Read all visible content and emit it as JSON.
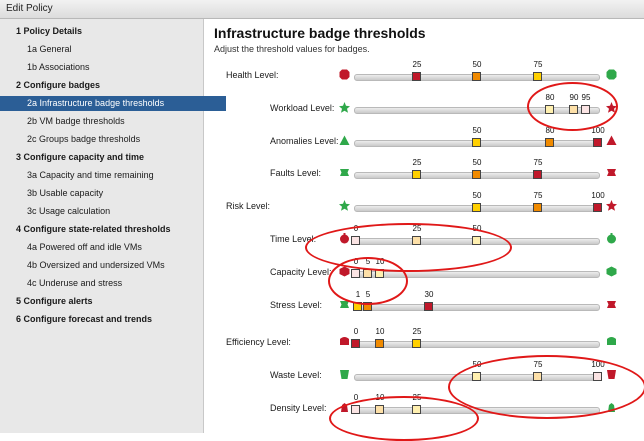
{
  "window": {
    "title": "Edit Policy"
  },
  "sidebar": {
    "items": [
      {
        "num": "1",
        "label": "Policy Details",
        "level": 1
      },
      {
        "num": "1a",
        "label": "General",
        "level": 2
      },
      {
        "num": "1b",
        "label": "Associations",
        "level": 2
      },
      {
        "num": "2",
        "label": "Configure badges",
        "level": 1
      },
      {
        "num": "2a",
        "label": "Infrastructure badge thresholds",
        "level": 2,
        "active": true
      },
      {
        "num": "2b",
        "label": "VM badge thresholds",
        "level": 2
      },
      {
        "num": "2c",
        "label": "Groups badge thresholds",
        "level": 2
      },
      {
        "num": "3",
        "label": "Configure capacity and time",
        "level": 1
      },
      {
        "num": "3a",
        "label": "Capacity and time remaining",
        "level": 2
      },
      {
        "num": "3b",
        "label": "Usable capacity",
        "level": 2
      },
      {
        "num": "3c",
        "label": "Usage calculation",
        "level": 2
      },
      {
        "num": "4",
        "label": "Configure state-related thresholds",
        "level": 1
      },
      {
        "num": "4a",
        "label": "Powered off and idle VMs",
        "level": 2
      },
      {
        "num": "4b",
        "label": "Oversized and undersized VMs",
        "level": 2
      },
      {
        "num": "4c",
        "label": "Underuse and stress",
        "level": 2
      },
      {
        "num": "5",
        "label": "Configure alerts",
        "level": 1
      },
      {
        "num": "6",
        "label": "Configure forecast and trends",
        "level": 1
      }
    ]
  },
  "main": {
    "title": "Infrastructure badge thresholds",
    "subtitle": "Adjust the threshold values for badges.",
    "rows": [
      {
        "label": "Health Level:",
        "type": "group",
        "left_icon": "health-badge-red",
        "right_icon": "health-badge-green",
        "handles": [
          {
            "value": "25",
            "pos": 25,
            "color": "#c0182a"
          },
          {
            "value": "50",
            "pos": 50,
            "color": "#f08a00"
          },
          {
            "value": "75",
            "pos": 75,
            "color": "#ffd000"
          }
        ]
      },
      {
        "label": "Workload Level:",
        "type": "sub",
        "left_icon": "workload-badge-green",
        "right_icon": "workload-badge-red",
        "handles": [
          {
            "value": "80",
            "pos": 80,
            "color": "#fff0b0"
          },
          {
            "value": "90",
            "pos": 90,
            "color": "#fde0a8"
          },
          {
            "value": "95",
            "pos": 95,
            "color": "#fbe4e4"
          }
        ]
      },
      {
        "label": "Anomalies Level:",
        "type": "sub",
        "left_icon": "anomalies-badge-green",
        "right_icon": "anomalies-badge-red",
        "handles": [
          {
            "value": "50",
            "pos": 50,
            "color": "#ffd000"
          },
          {
            "value": "80",
            "pos": 80,
            "color": "#f08a00"
          },
          {
            "value": "100",
            "pos": 100,
            "color": "#c0182a"
          }
        ]
      },
      {
        "label": "Faults Level:",
        "type": "sub",
        "left_icon": "faults-badge-green",
        "right_icon": "faults-badge-red",
        "handles": [
          {
            "value": "25",
            "pos": 25,
            "color": "#ffd000"
          },
          {
            "value": "50",
            "pos": 50,
            "color": "#f08a00"
          },
          {
            "value": "75",
            "pos": 75,
            "color": "#c0182a"
          }
        ]
      },
      {
        "label": "Risk Level:",
        "type": "group",
        "left_icon": "risk-badge-green",
        "right_icon": "risk-badge-red",
        "handles": [
          {
            "value": "50",
            "pos": 50,
            "color": "#ffd000"
          },
          {
            "value": "75",
            "pos": 75,
            "color": "#f08a00"
          },
          {
            "value": "100",
            "pos": 100,
            "color": "#c0182a"
          }
        ]
      },
      {
        "label": "Time Level:",
        "type": "sub",
        "left_icon": "time-badge-red",
        "right_icon": "time-badge-green",
        "handles": [
          {
            "value": "0",
            "pos": 0,
            "color": "#fbe4e4"
          },
          {
            "value": "25",
            "pos": 25,
            "color": "#fde0a8"
          },
          {
            "value": "50",
            "pos": 50,
            "color": "#fff0b0"
          }
        ]
      },
      {
        "label": "Capacity Level:",
        "type": "sub",
        "left_icon": "capacity-badge-red",
        "right_icon": "capacity-badge-green",
        "handles": [
          {
            "value": "0",
            "pos": 0,
            "color": "#fbe4e4"
          },
          {
            "value": "5",
            "pos": 5,
            "color": "#fde0a8"
          },
          {
            "value": "10",
            "pos": 10,
            "color": "#fff0b0"
          }
        ]
      },
      {
        "label": "Stress Level:",
        "type": "sub",
        "left_icon": "stress-badge-green",
        "right_icon": "stress-badge-red",
        "handles": [
          {
            "value": "1",
            "pos": 1,
            "color": "#ffd000"
          },
          {
            "value": "5",
            "pos": 5,
            "color": "#f08a00"
          },
          {
            "value": "30",
            "pos": 30,
            "color": "#c0182a"
          }
        ]
      },
      {
        "label": "Efficiency Level:",
        "type": "group",
        "left_icon": "efficiency-badge-red",
        "right_icon": "efficiency-badge-green",
        "handles": [
          {
            "value": "0",
            "pos": 0,
            "color": "#c0182a"
          },
          {
            "value": "10",
            "pos": 10,
            "color": "#f08a00"
          },
          {
            "value": "25",
            "pos": 25,
            "color": "#ffd000"
          }
        ]
      },
      {
        "label": "Waste Level:",
        "type": "sub",
        "left_icon": "waste-badge-green",
        "right_icon": "waste-badge-red",
        "handles": [
          {
            "value": "50",
            "pos": 50,
            "color": "#fff0b0"
          },
          {
            "value": "75",
            "pos": 75,
            "color": "#fde0a8"
          },
          {
            "value": "100",
            "pos": 100,
            "color": "#fbe4e4"
          }
        ]
      },
      {
        "label": "Density Level:",
        "type": "sub",
        "left_icon": "density-badge-red",
        "right_icon": "density-badge-green",
        "handles": [
          {
            "value": "0",
            "pos": 0,
            "color": "#fbe4e4"
          },
          {
            "value": "10",
            "pos": 10,
            "color": "#fde0a8"
          },
          {
            "value": "25",
            "pos": 25,
            "color": "#fff0b0"
          }
        ]
      }
    ]
  },
  "colors": {
    "accent": "#2b5e96",
    "badge_red": "#c0182a",
    "badge_green": "#2fa84a",
    "annotation": "#e01818"
  }
}
